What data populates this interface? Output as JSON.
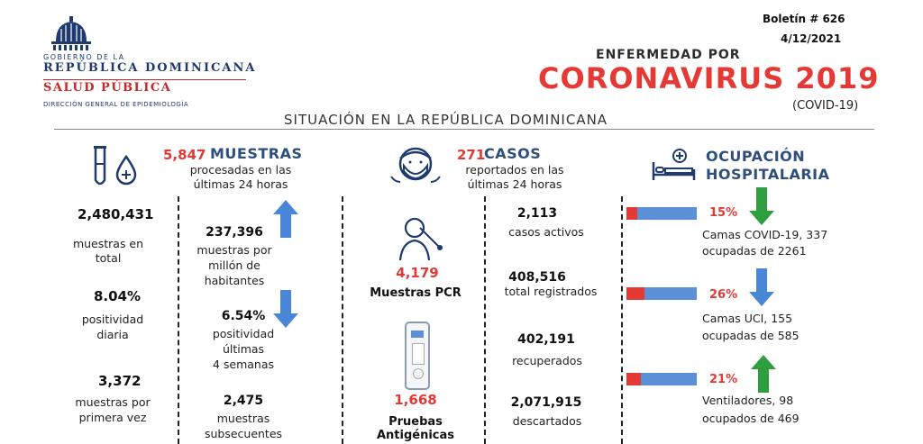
{
  "header": {
    "logo_line1": "GOBIERNO DE LA",
    "logo_line2": "REPÚBLICA DOMINICANA",
    "logo_line3": "SALUD PÚBLICA",
    "logo_line4": "DIRECCIÓN GENERAL DE EPIDEMIOLOGÍA",
    "boletin": "Boletín # 626",
    "fecha": "4/12/2021",
    "title_top": "ENFERMEDAD POR",
    "title_main": "CORONAVIRUS 2019",
    "title_sub": "(COVID-19)",
    "section": "SITUACIÓN EN LA REPÚBLICA DOMINICANA"
  },
  "muestras": {
    "count": "5,847",
    "title": "MUESTRAS",
    "desc1": "procesadas en las",
    "desc2": "últimas 24 horas",
    "total_value": "2,480,431",
    "total_label1": "muestras en",
    "total_label2": "total",
    "positividad_value": "8.04%",
    "positividad_label1": "positividad",
    "positividad_label2": "diaria",
    "primera_value": "3,372",
    "primera_label1": "muestras por",
    "primera_label2": "primera vez",
    "millon_value": "237,396",
    "millon_label1": "muestras por",
    "millon_label2": "millón de",
    "millon_label3": "habitantes",
    "pos4_value": "6.54%",
    "pos4_label1": "positividad",
    "pos4_label2": "últimas",
    "pos4_label3": "4 semanas",
    "subsec_value": "2,475",
    "subsec_label1": "muestras",
    "subsec_label2": "subsecuentes"
  },
  "pruebas": {
    "pcr_value": "4,179",
    "pcr_label": "Muestras PCR",
    "ant_value": "1,668",
    "ant_label": "Pruebas Antigénicas"
  },
  "casos": {
    "count": "271",
    "title": "CASOS",
    "desc1": "reportados en las",
    "desc2": "últimas 24 horas",
    "activos_value": "2,113",
    "activos_label": "casos activos",
    "registrados_value": "408,516",
    "registrados_label": "total registrados",
    "recuperados_value": "402,191",
    "recuperados_label": "recuperados",
    "descartados_value": "2,071,915",
    "descartados_label": "descartados"
  },
  "ocupacion": {
    "title1": "OCUPACIÓN",
    "title2": "HOSPITALARIA",
    "items": [
      {
        "pct": "15%",
        "fraction": 0.15,
        "trend": "down",
        "line1": "Camas COVID-19,  337",
        "line2": "ocupadas de 2261"
      },
      {
        "pct": "26%",
        "fraction": 0.26,
        "trend": "down",
        "line1": "Camas UCI,  155",
        "line2": "ocupadas de 585"
      },
      {
        "pct": "21%",
        "fraction": 0.21,
        "trend": "up",
        "line1": "Ventiladores, 98",
        "line2": "ocupados de 469"
      }
    ]
  },
  "colors": {
    "accent_red": "#e53935",
    "bar_blue": "#5b8fd6",
    "arrow_blue": "#4a86d8",
    "arrow_green": "#2e9e3e"
  }
}
